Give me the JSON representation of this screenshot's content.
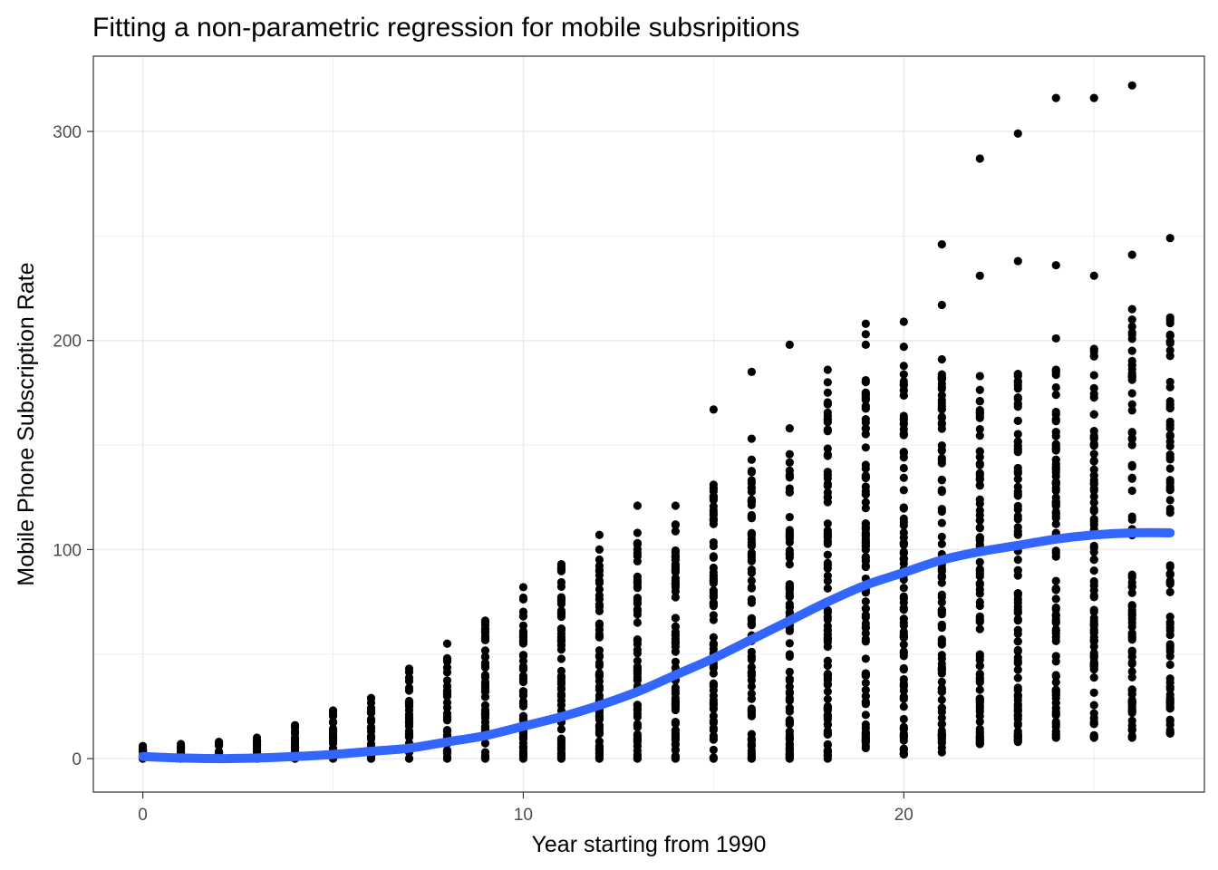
{
  "chart_data": {
    "type": "scatter",
    "title": "Fitting a non-parametric regression for mobile subsripitions",
    "xlabel": "Year starting from 1990",
    "ylabel": "Mobile Phone Subscription Rate",
    "xlim": [
      -1.3,
      27.9
    ],
    "ylim": [
      -16,
      336
    ],
    "x_ticks": [
      0,
      10,
      20
    ],
    "y_ticks": [
      0,
      100,
      200,
      300
    ],
    "x_minor_gridlines": [
      5,
      15,
      25
    ],
    "y_minor_gridlines": [
      50,
      150,
      250
    ],
    "grid": true,
    "legend": "none",
    "colors": {
      "points": "#000000",
      "smooth": "#3366ff",
      "grid": "#ebebeb",
      "border": "#333333"
    },
    "point_columns": [
      {
        "x": 0,
        "min": 0,
        "max": 6,
        "n": 12,
        "outliers": []
      },
      {
        "x": 1,
        "min": 0,
        "max": 7,
        "n": 12,
        "outliers": []
      },
      {
        "x": 2,
        "min": 0,
        "max": 8,
        "n": 14,
        "outliers": []
      },
      {
        "x": 3,
        "min": 0,
        "max": 10,
        "n": 16,
        "outliers": []
      },
      {
        "x": 4,
        "min": 0,
        "max": 16,
        "n": 20,
        "outliers": []
      },
      {
        "x": 5,
        "min": 0,
        "max": 23,
        "n": 24,
        "outliers": []
      },
      {
        "x": 6,
        "min": 0,
        "max": 29,
        "n": 28,
        "outliers": []
      },
      {
        "x": 7,
        "min": 0,
        "max": 43,
        "n": 34,
        "outliers": []
      },
      {
        "x": 8,
        "min": 0,
        "max": 48,
        "n": 40,
        "outliers": [
          55
        ]
      },
      {
        "x": 9,
        "min": 0,
        "max": 66,
        "n": 46,
        "outliers": []
      },
      {
        "x": 10,
        "min": 0,
        "max": 77,
        "n": 54,
        "outliers": [
          82
        ]
      },
      {
        "x": 11,
        "min": 0,
        "max": 93,
        "n": 60,
        "outliers": []
      },
      {
        "x": 12,
        "min": 0,
        "max": 100,
        "n": 64,
        "outliers": [
          107
        ]
      },
      {
        "x": 13,
        "min": 0,
        "max": 108,
        "n": 66,
        "outliers": [
          121
        ]
      },
      {
        "x": 14,
        "min": 0,
        "max": 112,
        "n": 70,
        "outliers": [
          121
        ]
      },
      {
        "x": 15,
        "min": 0,
        "max": 131,
        "n": 74,
        "outliers": [
          167
        ]
      },
      {
        "x": 16,
        "min": 0,
        "max": 143,
        "n": 78,
        "outliers": [
          153,
          185
        ]
      },
      {
        "x": 17,
        "min": 0,
        "max": 158,
        "n": 82,
        "outliers": [
          198
        ]
      },
      {
        "x": 18,
        "min": 0,
        "max": 180,
        "n": 86,
        "outliers": [
          186
        ]
      },
      {
        "x": 19,
        "min": 5,
        "max": 181,
        "n": 90,
        "outliers": [
          198,
          203,
          208
        ]
      },
      {
        "x": 20,
        "min": 2,
        "max": 197,
        "n": 92,
        "outliers": [
          209
        ]
      },
      {
        "x": 21,
        "min": 3,
        "max": 191,
        "n": 92,
        "outliers": [
          217,
          246
        ]
      },
      {
        "x": 22,
        "min": 7,
        "max": 183,
        "n": 88,
        "outliers": [
          231,
          287
        ]
      },
      {
        "x": 23,
        "min": 8,
        "max": 184,
        "n": 88,
        "outliers": [
          238,
          299
        ]
      },
      {
        "x": 24,
        "min": 10,
        "max": 186,
        "n": 86,
        "outliers": [
          201,
          236,
          316
        ]
      },
      {
        "x": 25,
        "min": 10,
        "max": 196,
        "n": 84,
        "outliers": [
          231,
          316
        ]
      },
      {
        "x": 26,
        "min": 10,
        "max": 215,
        "n": 84,
        "outliers": [
          241,
          322
        ]
      },
      {
        "x": 27,
        "min": 12,
        "max": 211,
        "n": 80,
        "outliers": [
          249
        ]
      }
    ],
    "smooth_series": {
      "x": [
        0,
        1,
        2,
        3,
        4,
        5,
        6,
        7,
        8,
        9,
        10,
        11,
        12,
        13,
        14,
        15,
        16,
        17,
        18,
        19,
        20,
        21,
        22,
        23,
        24,
        25,
        26,
        27
      ],
      "y": [
        1,
        0.3,
        0,
        0.3,
        1,
        2,
        3.5,
        5,
        8,
        11,
        15.5,
        20,
        25.5,
        32,
        40,
        48,
        57,
        66,
        75,
        83,
        89,
        95,
        99,
        102,
        105,
        107,
        108,
        108
      ]
    }
  }
}
